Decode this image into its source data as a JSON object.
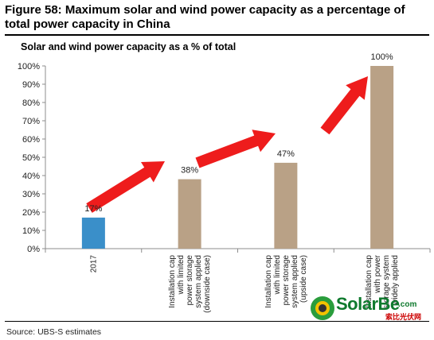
{
  "figure_title": "Figure 58: Maximum solar and wind power capacity as a percentage of total power capacity in China",
  "source": "Source:  UBS-S estimates",
  "colors": {
    "bar_2017": "#3a8fc9",
    "bar_cap": "#b9a186",
    "arrow": "#ee1c1c",
    "axis": "#8c8c8c"
  },
  "chart_data": {
    "type": "bar",
    "title": "Solar and wind power capacity as a % of total",
    "categories": [
      "2017",
      "Installation cap with limited power storage system applied (downside case)",
      "Installation cap with limited power storage system applied (upside case)",
      "Installation cap with power storage system widely applied"
    ],
    "category_lines": [
      [
        "2017"
      ],
      [
        "Installation cap",
        "with limited",
        "power storage",
        "system applied",
        "(downside case)"
      ],
      [
        "Installation cap",
        "with limited",
        "power storage",
        "system applied",
        "(upside case)"
      ],
      [
        "Installation cap",
        "with power",
        "storage system",
        "widely applied"
      ]
    ],
    "values": [
      17,
      38,
      47,
      100
    ],
    "data_labels": [
      "17%",
      "38%",
      "47%",
      "100%"
    ],
    "ylim": [
      0,
      100
    ],
    "yticks": [
      "0%",
      "10%",
      "20%",
      "30%",
      "40%",
      "50%",
      "60%",
      "70%",
      "80%",
      "90%",
      "100%"
    ],
    "xlabel": "",
    "ylabel": "",
    "grid": false,
    "annotations": "red arrows between bars"
  },
  "watermark": {
    "brand": "SolarBe",
    "suffix": ".com",
    "sub": "索比光伏网"
  }
}
